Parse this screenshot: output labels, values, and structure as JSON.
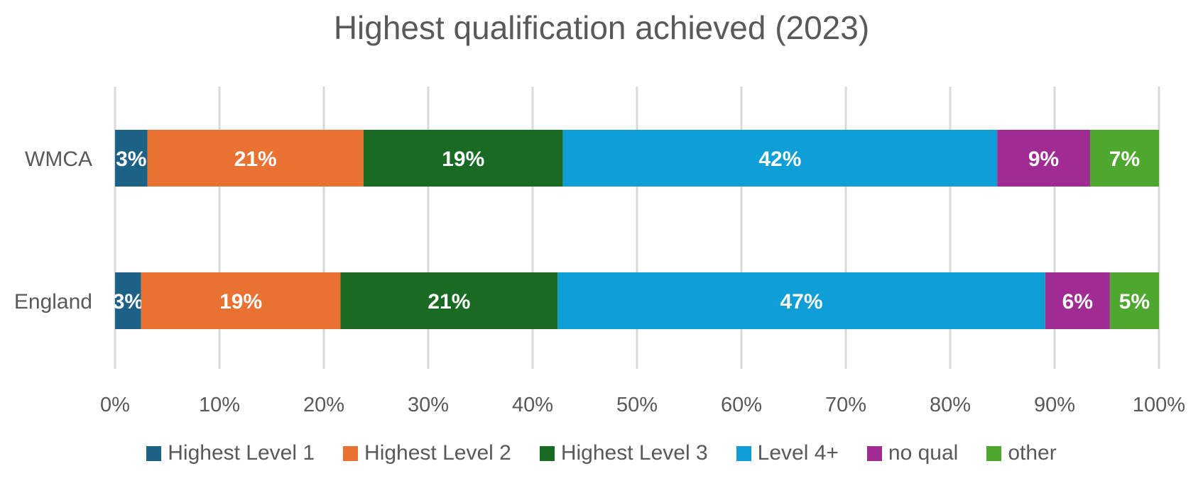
{
  "chart_data": {
    "type": "bar",
    "orientation": "horizontal",
    "stacked": true,
    "title": "Highest qualification achieved (2023)",
    "categories": [
      "WMCA",
      "England"
    ],
    "series": [
      {
        "name": "Highest Level 1",
        "color": "#1B6286",
        "values": [
          3.1,
          2.5
        ],
        "labels": [
          "3%",
          "3%"
        ]
      },
      {
        "name": "Highest Level 2",
        "color": "#E97132",
        "values": [
          20.7,
          19.1
        ],
        "labels": [
          "21%",
          "19%"
        ]
      },
      {
        "name": "Highest Level 3",
        "color": "#196B24",
        "values": [
          19.1,
          20.8
        ],
        "labels": [
          "19%",
          "21%"
        ]
      },
      {
        "name": "Level 4+",
        "color": "#0F9ED5",
        "values": [
          41.6,
          46.7
        ],
        "labels": [
          "42%",
          "47%"
        ]
      },
      {
        "name": "no qual",
        "color": "#A02B93",
        "values": [
          8.9,
          6.2
        ],
        "labels": [
          "9%",
          "6%"
        ]
      },
      {
        "name": "other",
        "color": "#4EA72E",
        "values": [
          6.6,
          4.7
        ],
        "labels": [
          "7%",
          "5%"
        ]
      }
    ],
    "xlim": [
      0,
      100
    ],
    "xticks": [
      "0%",
      "10%",
      "20%",
      "30%",
      "40%",
      "50%",
      "60%",
      "70%",
      "80%",
      "90%",
      "100%"
    ],
    "grid": true,
    "legend_position": "bottom"
  }
}
